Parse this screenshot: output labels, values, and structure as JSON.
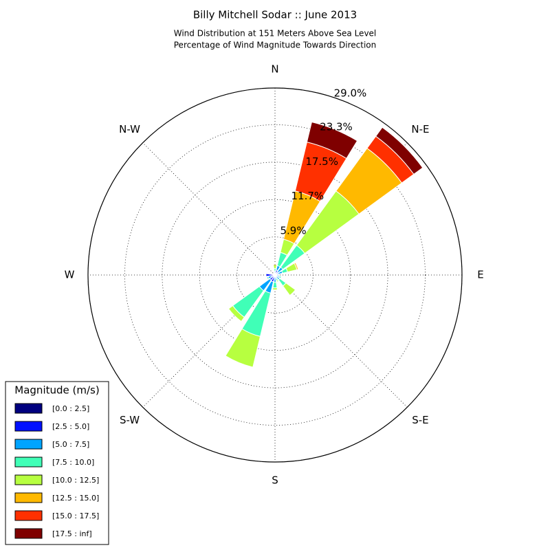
{
  "chart_data": {
    "type": "windrose",
    "title": "Billy Mitchell Sodar :: June 2013",
    "subtitle": [
      "Wind Distribution at 151 Meters Above Sea Level",
      "Percentage of Wind Magnitude Towards Direction"
    ],
    "direction_labels": [
      "N",
      "N-E",
      "E",
      "S-E",
      "S",
      "S-W",
      "W",
      "N-W"
    ],
    "categories": [
      null,
      null,
      null,
      null,
      null,
      null,
      null,
      null,
      null,
      null,
      null,
      null,
      null,
      null,
      null,
      null
    ],
    "rlim": [
      0,
      29.0
    ],
    "rticks": [
      {
        "value": 5.9,
        "label": "5.9%"
      },
      {
        "value": 11.7,
        "label": "11.7%"
      },
      {
        "value": 17.5,
        "label": "17.5%"
      },
      {
        "value": 23.3,
        "label": "23.3%"
      },
      {
        "value": 29.0,
        "label": "29.0%"
      }
    ],
    "grid": true,
    "legend_title": "Magnitude (m/s)",
    "legend": "lower left",
    "series": [
      {
        "name": "[0.0 : 2.5]",
        "color": "#00007f",
        "values": [
          0.1,
          0.3,
          0.2,
          0.2,
          0.1,
          0.1,
          0.1,
          0.1,
          0.1,
          0.3,
          0.3,
          0.2,
          0.3,
          0.1,
          0.1,
          0.1
        ]
      },
      {
        "name": "[2.5 : 5.0]",
        "color": "#0010ff",
        "values": [
          0.2,
          0.5,
          0.4,
          0.3,
          0.2,
          0.2,
          0.2,
          0.2,
          0.3,
          0.8,
          0.7,
          0.4,
          1.1,
          0.2,
          0.1,
          0.1
        ]
      },
      {
        "name": "[5.0 : 7.5]",
        "color": "#00a4ff",
        "values": [
          0.3,
          0.7,
          0.9,
          0.7,
          0.3,
          0.4,
          0.6,
          0.3,
          0.7,
          1.8,
          2.0,
          0.5,
          0,
          0.1,
          0.1,
          0.1
        ]
      },
      {
        "name": "[7.5 : 10.0]",
        "color": "#40ffb7",
        "values": [
          0.4,
          2.1,
          4.2,
          0.8,
          0,
          0.3,
          1.2,
          0.3,
          0.9,
          6.9,
          5.1,
          0.2,
          0,
          0,
          0,
          0.1
        ]
      },
      {
        "name": "[10.0 : 12.5]",
        "color": "#b7ff40",
        "values": [
          0.6,
          2.1,
          10.4,
          1.5,
          0,
          0,
          1.8,
          0.2,
          0.3,
          4.9,
          0.8,
          0,
          0,
          0,
          0,
          0
        ]
      },
      {
        "name": "[12.5 : 15.0]",
        "color": "#ffb900",
        "values": [
          0,
          7.7,
          8.2,
          0.2,
          0,
          0,
          0,
          0,
          0,
          0,
          0,
          0,
          0,
          0,
          0,
          0
        ]
      },
      {
        "name": "[15.0 : 17.5]",
        "color": "#ff3000",
        "values": [
          0,
          7.8,
          2.3,
          0,
          0,
          0,
          0,
          0,
          0,
          0,
          0,
          0,
          0,
          0,
          0,
          0
        ]
      },
      {
        "name": "[17.5 : inf]",
        "color": "#7f0000",
        "values": [
          0,
          3.2,
          1.7,
          0,
          0,
          0,
          0,
          0,
          0,
          0,
          0,
          0,
          0,
          0,
          0,
          0
        ]
      }
    ]
  }
}
